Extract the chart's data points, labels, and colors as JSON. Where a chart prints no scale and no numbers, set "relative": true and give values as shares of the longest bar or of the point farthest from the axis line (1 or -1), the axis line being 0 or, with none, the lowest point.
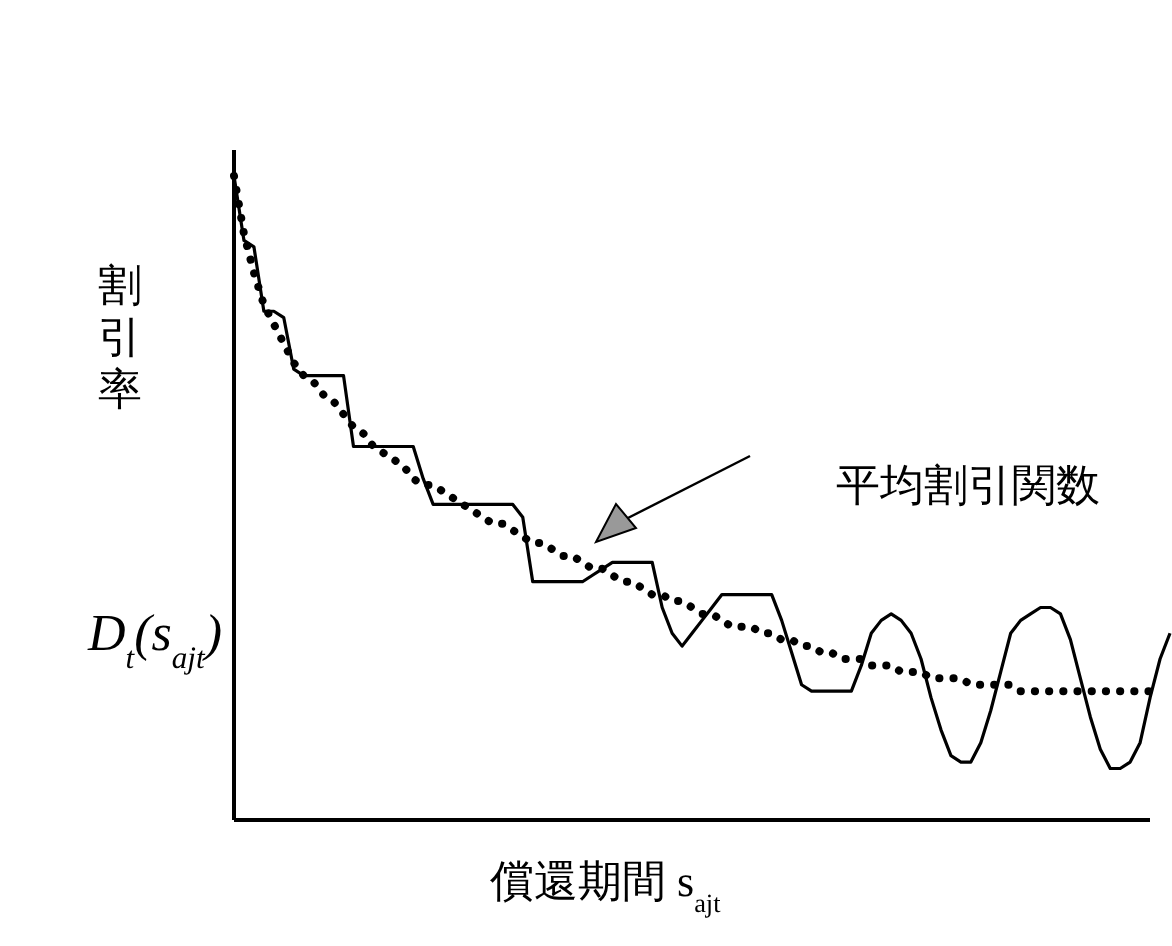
{
  "chart_data": {
    "type": "line",
    "relative": true,
    "ylabel": "割引率",
    "xlabel": "償還期間 s$_{ajt}$",
    "annotations": [
      "D$_{t}$(s$_{ajt}$)",
      "平均割引関数"
    ],
    "categories": [
      null,
      null,
      null,
      null,
      null,
      null,
      null,
      null,
      null,
      null,
      null,
      null,
      null,
      null,
      null,
      null,
      null,
      null,
      null,
      null,
      null,
      null,
      null,
      null,
      null,
      null,
      null,
      null,
      null,
      null,
      null,
      null,
      null,
      null,
      null,
      null,
      null,
      null,
      null,
      null,
      null,
      null,
      null,
      null,
      null,
      null,
      null,
      null,
      null,
      null,
      null,
      null,
      null,
      null,
      null,
      null,
      null,
      null,
      null,
      null,
      null,
      null,
      null,
      null,
      null,
      null,
      null,
      null,
      null,
      null,
      null,
      null,
      null,
      null,
      null,
      null,
      null,
      null,
      null,
      null,
      null,
      null,
      null,
      null,
      null,
      null,
      null,
      null,
      null,
      null,
      null,
      null,
      null,
      null,
      null
    ],
    "series": [
      {
        "color": "#000000",
        "line_style": "solid",
        "values": [
          1.0,
          0.9,
          0.89,
          0.79,
          0.79,
          0.78,
          0.7,
          0.69,
          0.69,
          0.69,
          0.69,
          0.69,
          0.58,
          0.58,
          0.58,
          0.58,
          0.58,
          0.58,
          0.58,
          0.53,
          0.49,
          0.49,
          0.49,
          0.49,
          0.49,
          0.49,
          0.49,
          0.49,
          0.49,
          0.47,
          0.37,
          0.37,
          0.37,
          0.37,
          0.37,
          0.37,
          0.38,
          0.39,
          0.4,
          0.4,
          0.4,
          0.4,
          0.4,
          0.33,
          0.29,
          0.27,
          0.29,
          0.31,
          0.33,
          0.35,
          0.35,
          0.35,
          0.35,
          0.35,
          0.35,
          0.31,
          0.26,
          0.21,
          0.2,
          0.2,
          0.2,
          0.2,
          0.2,
          0.24,
          0.29,
          0.31,
          0.32,
          0.31,
          0.29,
          0.25,
          0.19,
          0.14,
          0.1,
          0.09,
          0.09,
          0.12,
          0.17,
          0.23,
          0.29,
          0.31,
          0.32,
          0.33,
          0.33,
          0.32,
          0.28,
          0.22,
          0.16,
          0.11,
          0.08,
          0.08,
          0.09,
          0.12,
          0.19,
          0.25,
          0.29
        ]
      },
      {
        "color": "#000000",
        "line_style": "dotted",
        "values": [
          1.0,
          0.91,
          0.85,
          0.8,
          0.77,
          0.74,
          0.71,
          0.69,
          0.68,
          0.66,
          0.65,
          0.63,
          0.61,
          0.6,
          0.58,
          0.57,
          0.56,
          0.55,
          0.53,
          0.52,
          0.52,
          0.51,
          0.5,
          0.49,
          0.48,
          0.47,
          0.46,
          0.46,
          0.45,
          0.44,
          0.43,
          0.43,
          0.42,
          0.41,
          0.41,
          0.4,
          0.39,
          0.39,
          0.38,
          0.37,
          0.37,
          0.36,
          0.35,
          0.35,
          0.34,
          0.34,
          0.33,
          0.32,
          0.32,
          0.31,
          0.3,
          0.3,
          0.3,
          0.29,
          0.29,
          0.28,
          0.28,
          0.27,
          0.27,
          0.26,
          0.26,
          0.25,
          0.25,
          0.25,
          0.24,
          0.24,
          0.24,
          0.23,
          0.23,
          0.23,
          0.22,
          0.22,
          0.22,
          0.22,
          0.21,
          0.21,
          0.21,
          0.21,
          0.21,
          0.2,
          0.2,
          0.2,
          0.2,
          0.2,
          0.2,
          0.2,
          0.2,
          0.2,
          0.2,
          0.2,
          0.2,
          0.2,
          0.2,
          null,
          null
        ]
      }
    ]
  }
}
